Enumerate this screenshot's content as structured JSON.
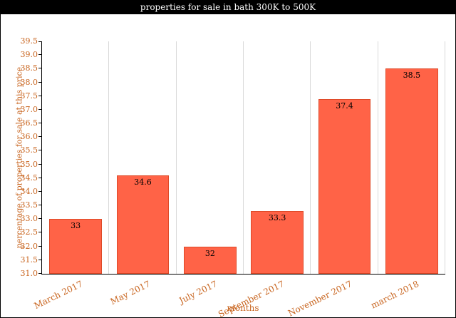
{
  "chart_data": {
    "type": "bar",
    "title": "properties for sale in bath 300K to 500K",
    "categories": [
      "March 2017",
      "May 2017",
      "July 2017",
      "September 2017",
      "November 2017",
      "march 2018"
    ],
    "values": [
      33,
      34.6,
      32,
      33.3,
      37.4,
      38.5
    ],
    "xlabel": "months",
    "ylabel": "percentage of properties for sale at this price",
    "ylim": [
      31.0,
      39.5
    ],
    "ytick_step": 0.5,
    "grid": "vertical",
    "legend": "none",
    "bar_color": "#ff6347",
    "bar_border_color": "#de4a28",
    "tick_label_color": "#c8641e",
    "value_label_color": "#000000",
    "title_bar_bg": "#000000",
    "title_bar_text": "#ffffff"
  }
}
